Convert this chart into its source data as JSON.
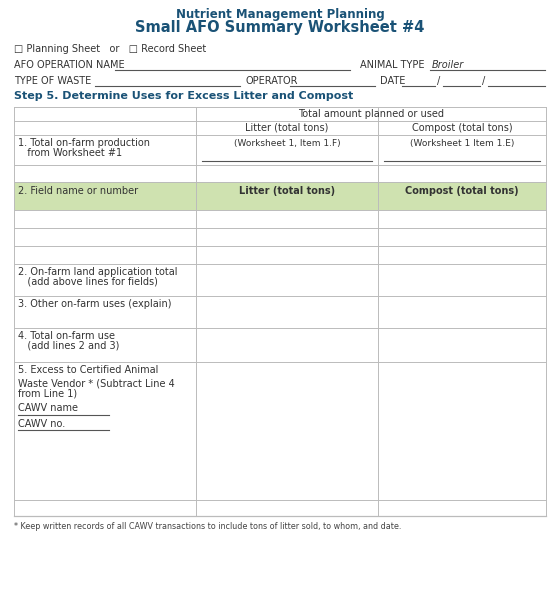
{
  "title_line1": "Nutrient Management Planning",
  "title_line2": "Small AFO Summary Worksheet #4",
  "title_color": "#1a5276",
  "planning_label": "□ Planning Sheet   or   □ Record Sheet",
  "afo_label": "AFO OPERATION NAME",
  "animal_type_label": "ANIMAL TYPE",
  "animal_type_value": "Broiler",
  "type_waste_label": "TYPE OF WASTE",
  "operator_label": "OPERATOR",
  "date_label": "DATE",
  "step_label": "Step 5. Determine Uses for Excess Litter and Compost",
  "step_color": "#1a5276",
  "header1": "Total amount planned or used",
  "header2": "Litter (total tons)",
  "header3": "Compost (total tons)",
  "row1_label1": "1. Total on-farm production",
  "row1_label2": "   from Worksheet #1",
  "row1_col2": "(Worksheet 1, Item 1.F)",
  "row1_col3": "(Worksheet 1 Item 1.E)",
  "row2_label": "2. Field name or number",
  "row2_col2": "Litter (total tons)",
  "row2_col3": "Compost (total tons)",
  "row2_bg": "#cfe2b0",
  "row_farm_label1": "2. On-farm land application total",
  "row_farm_label2": "   (add above lines for fields)",
  "row_other_label": "3. Other on-farm uses (explain)",
  "row_total_label1": "4. Total on-farm use",
  "row_total_label2": "   (add lines 2 and 3)",
  "row5_label1": "5. Excess to Certified Animal",
  "row5_label2": "Waste Vendor * (Subtract Line 4",
  "row5_label3": "from Line 1)",
  "row5_label4": "CAWV name",
  "row5_label5": "CAWV no. ",
  "footnote": "* Keep written records of all CAWV transactions to include tons of litter sold, to whom, and date.",
  "bg_color": "#ffffff",
  "line_color": "#bbbbbb",
  "text_color": "#333333",
  "bold_color": "#222222",
  "fs_title1": 8.5,
  "fs_title2": 10.5,
  "fs_step": 8.0,
  "fs_body": 7.0,
  "fs_footnote": 5.8
}
